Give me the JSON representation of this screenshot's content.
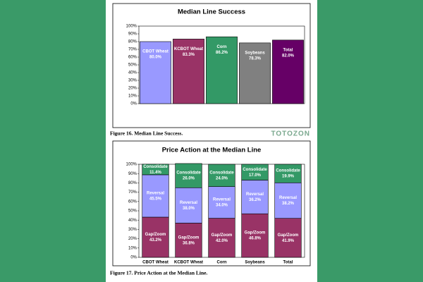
{
  "watermark": "TOTOZON",
  "chart_data": [
    {
      "type": "bar",
      "title": "Median Line Success",
      "caption": "Figure 16. Median Line Success.",
      "categories": [
        "CBOT Wheat",
        "KCBOT Wheat",
        "Corn",
        "Soybeans",
        "Total"
      ],
      "values": [
        80.0,
        83.3,
        86.2,
        78.3,
        82.0
      ],
      "value_labels": [
        "80.0%",
        "83.3%",
        "86.2%",
        "78.3%",
        "82.0%"
      ],
      "colors": [
        "#9999ff",
        "#993366",
        "#339966",
        "#808080",
        "#660066"
      ],
      "ylim": [
        0,
        100
      ],
      "yticks": [
        {
          "value": 0,
          "label": "0%"
        },
        {
          "value": 10,
          "label": "10%"
        },
        {
          "value": 20,
          "label": "20%"
        },
        {
          "value": 30,
          "label": "30%"
        },
        {
          "value": 40,
          "label": "40%"
        },
        {
          "value": 50,
          "label": "50%"
        },
        {
          "value": 60,
          "label": "60%"
        },
        {
          "value": 70,
          "label": "70%"
        },
        {
          "value": 80,
          "label": "80%"
        },
        {
          "value": 90,
          "label": "90%"
        },
        {
          "value": 100,
          "label": "100%"
        }
      ]
    },
    {
      "type": "stacked_bar",
      "title": "Price Action at the Median Line",
      "caption": "Figure 17. Price Action at the Median Line.",
      "categories": [
        "CBOT Wheat",
        "KCBOT Wheat",
        "Corn",
        "Soybeans",
        "Total"
      ],
      "series": [
        {
          "name": "Gap/Zoom",
          "color": "#993366",
          "values": [
            43.2,
            36.8,
            42.0,
            46.8,
            41.9
          ],
          "value_labels": [
            "43.2%",
            "36.8%",
            "42.0%",
            "46.8%",
            "41.9%"
          ]
        },
        {
          "name": "Reversal",
          "color": "#9999ff",
          "values": [
            45.5,
            38.0,
            34.0,
            36.2,
            38.2
          ],
          "value_labels": [
            "45.5%",
            "38.0%",
            "34.0%",
            "36.2%",
            "38.2%"
          ]
        },
        {
          "name": "Consolidate",
          "color": "#339966",
          "values": [
            11.4,
            26.0,
            24.0,
            17.0,
            19.9
          ],
          "value_labels": [
            "11.4%",
            "26.0%",
            "24.0%",
            "17.0%",
            "19.9%"
          ]
        }
      ],
      "ylim": [
        0,
        100
      ],
      "yticks": [
        {
          "value": 0,
          "label": "0%"
        },
        {
          "value": 10,
          "label": "10%"
        },
        {
          "value": 20,
          "label": "20%"
        },
        {
          "value": 30,
          "label": "30%"
        },
        {
          "value": 40,
          "label": "40%"
        },
        {
          "value": 50,
          "label": "50%"
        },
        {
          "value": 60,
          "label": "60%"
        },
        {
          "value": 70,
          "label": "70%"
        },
        {
          "value": 80,
          "label": "80%"
        },
        {
          "value": 90,
          "label": "90%"
        },
        {
          "value": 100,
          "label": "100%"
        }
      ]
    }
  ]
}
